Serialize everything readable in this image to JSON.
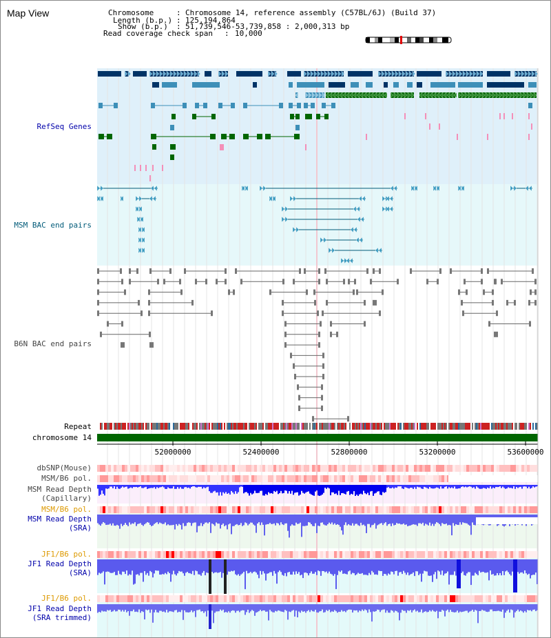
{
  "window": {
    "title": "Map View"
  },
  "info": {
    "chromosome_label": "Chromosome",
    "chromosome_value": "Chromosome 14, reference assembly (C57BL/6J) (Build 37)",
    "length_label": "Length (b.p.)",
    "length_value": "125,194,864",
    "show_label": "Show (b.p.)",
    "show_value": "51,739,546-53,739,858 : 2,000,313 bp",
    "coverage_label": "Read coverage check span",
    "coverage_value": "10,000"
  },
  "tracks": {
    "refseq": "RefSeq Genes",
    "msm_bac": "MSM BAC end pairs",
    "b6n_bac": "B6N BAC end pairs",
    "repeat": "Repeat",
    "chromosome": "chromosome 14",
    "dbsnp": "dbSNP(Mouse)",
    "msm_pol_1": "MSM/B6 pol.",
    "msm_depth_cap_1": "MSM Read Depth",
    "msm_depth_cap_2": "(Capillary)",
    "msm_pol_2": "MSM/B6 pol.",
    "msm_depth_sra_1": "MSM Read Depth",
    "msm_depth_sra_2": "(SRA)",
    "jf1_pol_1": "JF1/B6 pol.",
    "jf1_depth_sra_1": "JF1 Read Depth",
    "jf1_depth_sra_2": "(SRA)",
    "jf1_pol_2": "JF1/B6 pol.",
    "jf1_trim_1": "JF1 Read Depth",
    "jf1_trim_2": "(SRA trimmed)"
  },
  "axis": {
    "ticks": [
      "52000000",
      "52400000",
      "52800000",
      "53200000",
      "53600000"
    ]
  },
  "colors": {
    "refseq_bg": "#dff0fa",
    "msm_bac_bg": "#e6f8fa",
    "gene_dark": "#003366",
    "gene_mid": "#3d8fb8",
    "gene_green": "#006600",
    "pink": "#f48fb8",
    "chrom_green": "#006600",
    "depth_blue": "#1010f0",
    "label_blue": "#0000aa",
    "label_orange": "#dd9900",
    "label_teal": "#005a78",
    "label_gray": "#444444"
  }
}
